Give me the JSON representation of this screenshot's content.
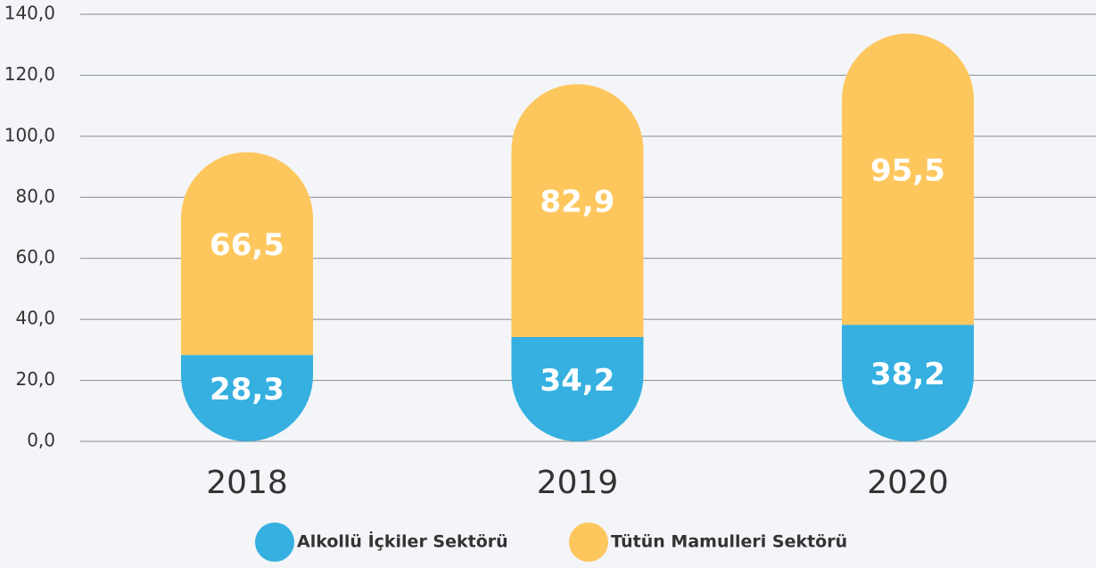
{
  "chart_data": {
    "type": "bar",
    "stacked": true,
    "categories": [
      "2018",
      "2019",
      "2020"
    ],
    "series": [
      {
        "name": "Alkollü İçkiler Sektörü",
        "color": "#35b0e0",
        "values": [
          28.3,
          34.2,
          38.2
        ],
        "value_labels": [
          "28,3",
          "34,2",
          "38,2"
        ]
      },
      {
        "name": "Tütün Mamulleri Sektörü",
        "color": "#fec75e",
        "values": [
          66.5,
          82.9,
          95.5
        ],
        "value_labels": [
          "66,5",
          "82,9",
          "95,5"
        ]
      }
    ],
    "ylim": [
      0,
      140
    ],
    "yticks": [
      {
        "value": 0,
        "label": "0,0"
      },
      {
        "value": 20,
        "label": "20,0"
      },
      {
        "value": 40,
        "label": "40,0"
      },
      {
        "value": 60,
        "label": "60,0"
      },
      {
        "value": 80,
        "label": "80,0"
      },
      {
        "value": 100,
        "label": "100,0"
      },
      {
        "value": 120,
        "label": "120,0"
      },
      {
        "value": 140,
        "label": "140,0"
      }
    ],
    "grid": true,
    "legend": "bottom"
  }
}
